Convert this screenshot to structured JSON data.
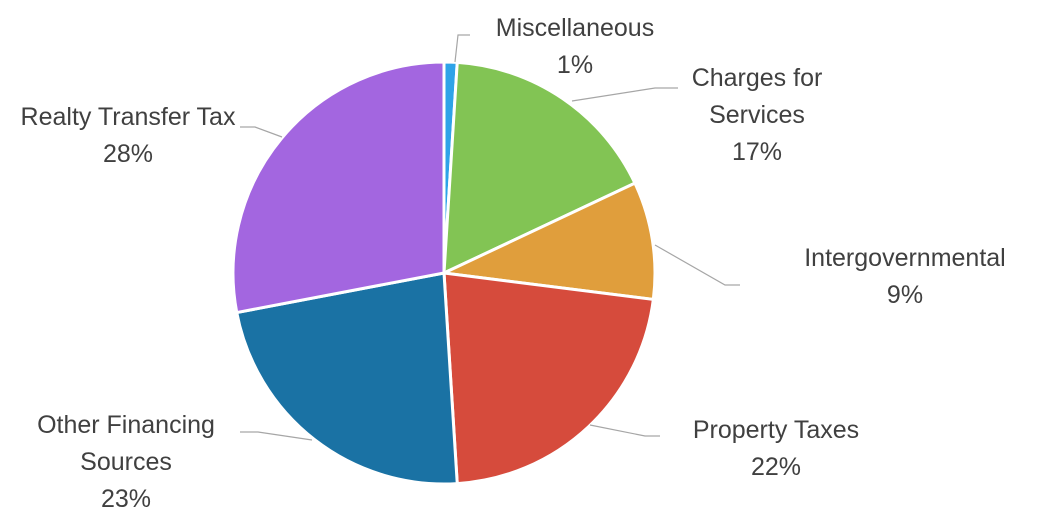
{
  "chart_data": {
    "type": "pie",
    "categories": [
      "Miscellaneous",
      "Charges for Services",
      "Intergovernmental",
      "Property Taxes",
      "Other Financing Sources",
      "Realty Transfer Tax"
    ],
    "values": [
      1,
      17,
      9,
      22,
      23,
      28
    ],
    "value_labels": [
      "1%",
      "17%",
      "9%",
      "22%",
      "23%",
      "28%"
    ],
    "colors": [
      "#2ea3e8",
      "#82c454",
      "#e09e3c",
      "#d64b3c",
      "#1a72a4",
      "#a366e0"
    ]
  }
}
